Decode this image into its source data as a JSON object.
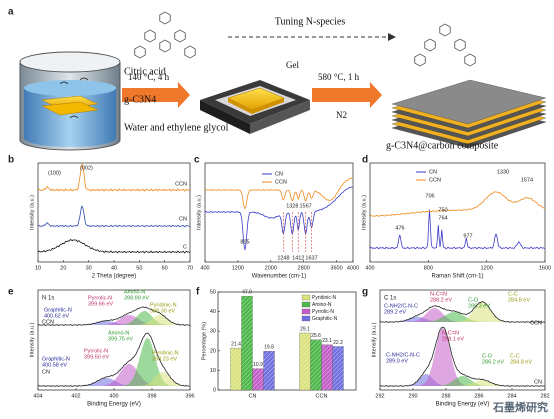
{
  "panel_labels": [
    "a",
    "b",
    "c",
    "d",
    "e",
    "f",
    "g"
  ],
  "scheme": {
    "tuning": "Tuning N-species",
    "citric": "Citric acid",
    "gcn": "g-C3N4",
    "solvent": "Water and ethylene glycol",
    "step1": "140 °C, 4 h",
    "gel": "Gel",
    "step2": "580 °C, 1 h",
    "gas": "N2",
    "product": "g-C3N4@carbon composite"
  },
  "b": {
    "ylabel": "Intensity (a.u.)",
    "xlabel": "2 Theta (degree)",
    "xticks": [
      10,
      20,
      30,
      40,
      50,
      60,
      70
    ],
    "peaks": [
      "(100)",
      "(002)"
    ],
    "series": [
      "CCN",
      "CN",
      "C"
    ]
  },
  "c": {
    "ylabel": "Intensity (a.u.)",
    "xlabel": "Wavenumber (cm-1)",
    "xticks": [
      400,
      1200,
      2000,
      2800,
      3600,
      4000
    ],
    "legend": [
      "CN",
      "CCN"
    ],
    "peaks": [
      "805",
      "1248",
      "1328",
      "1412",
      "1567",
      "1637"
    ]
  },
  "d": {
    "ylabel": "Intensity (a.u.)",
    "xlabel": "Raman Shift (cm-1)",
    "xticks": [
      400,
      800,
      1200,
      1600
    ],
    "legend": [
      "CN",
      "CCN"
    ],
    "peaks": [
      "476",
      "706",
      "750",
      "764",
      "977",
      "1330",
      "1574"
    ]
  },
  "e": {
    "ylabel": "Intensity (a.u.)",
    "xlabel": "Binding Energy (eV)",
    "xticks": [
      404,
      402,
      400,
      398,
      396
    ],
    "core": "N 1s",
    "series": [
      "CCN",
      "CN"
    ],
    "top": [
      {
        "name": "Pyrrolic-N",
        "energy": "399.66 eV"
      },
      {
        "name": "Amino-N",
        "energy": "398.89 eV"
      },
      {
        "name": "Pyridinic-N",
        "energy": "398.30 eV"
      },
      {
        "name": "Graphitic-N",
        "energy": "400.62 eV"
      }
    ],
    "bottom": [
      {
        "name": "Amino-N",
        "energy": "399.75 eV"
      },
      {
        "name": "Pyrrolic-N",
        "energy": "399.50 eV"
      },
      {
        "name": "Graphitic-N",
        "energy": "400.58 eV"
      },
      {
        "name": "Pyridinic-N",
        "energy": "398.23 eV"
      }
    ]
  },
  "g": {
    "ylabel": "Intensity (a.u.)",
    "xlabel": "Binding Energy (eV)",
    "xticks": [
      292,
      290,
      288,
      286,
      284,
      282
    ],
    "core": "C 1s",
    "series": [
      "CCN",
      "CN"
    ],
    "top": [
      {
        "name": "C-NH2/C-N-C",
        "energy": "289.2 eV"
      },
      {
        "name": "N-C=N",
        "energy": "288.2 eV"
      },
      {
        "name": "C-O",
        "energy": "286.3 eV"
      },
      {
        "name": "C-C",
        "energy": "284.8 eV"
      }
    ],
    "bottom": [
      {
        "name": "N-C=N",
        "energy": "288.1 eV"
      },
      {
        "name": "C-NH2/C-N-C",
        "energy": "289.0 eV"
      },
      {
        "name": "C-O",
        "energy": "286.2 eV"
      },
      {
        "name": "C-C",
        "energy": "284.8 eV"
      }
    ]
  },
  "chart_data": {
    "type": "bar",
    "ylabel": "Percentage (%)",
    "categories": [
      "CN",
      "CCN"
    ],
    "ylim": [
      0,
      50
    ],
    "yticks": [
      0,
      10,
      20,
      30,
      40,
      50
    ],
    "series": [
      {
        "name": "Pyridinic-N",
        "color": "#d9e27c",
        "values": [
          21.4,
          29.1
        ]
      },
      {
        "name": "Amino-N",
        "color": "#4cb84a",
        "values": [
          47.9,
          25.6
        ]
      },
      {
        "name": "Pyrrolic-N",
        "color": "#c25ec8",
        "values": [
          10.9,
          23.1
        ]
      },
      {
        "name": "Graphitic-N",
        "color": "#6f6fe0",
        "values": [
          19.8,
          22.2
        ]
      }
    ]
  },
  "watermark": "石墨烯研究"
}
